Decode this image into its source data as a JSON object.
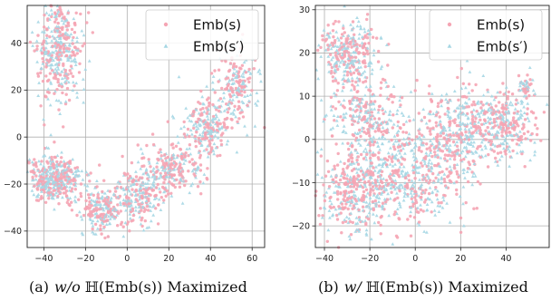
{
  "chart_data": [
    {
      "type": "scatter",
      "xlim": [
        -48,
        66
      ],
      "ylim": [
        -47,
        56
      ],
      "xticks": [
        -40,
        -20,
        0,
        20,
        40,
        60
      ],
      "yticks": [
        -40,
        -20,
        0,
        20,
        40
      ],
      "grid": true,
      "legend": "top-right",
      "series": [
        {
          "name": "Emb(s)",
          "color": "#f5a5b4",
          "marker": "circle"
        },
        {
          "name": "Emb(s′)",
          "color": "#a6d7e4",
          "marker": "triangle"
        }
      ],
      "clusters": [
        {
          "cx": -33,
          "cy": 38,
          "sx": 5,
          "sy": 11,
          "n": 380
        },
        {
          "cx": -35,
          "cy": -18,
          "sx": 7,
          "sy": 5,
          "n": 420
        },
        {
          "cx": -12,
          "cy": -31,
          "sx": 5,
          "sy": 5,
          "n": 200
        },
        {
          "cx": 5,
          "cy": -25,
          "sx": 6,
          "sy": 6,
          "n": 240
        },
        {
          "cx": 22,
          "cy": -13,
          "sx": 8,
          "sy": 5,
          "n": 240
        },
        {
          "cx": 38,
          "cy": 5,
          "sx": 6,
          "sy": 6,
          "n": 220
        },
        {
          "cx": 52,
          "cy": 22,
          "sx": 5,
          "sy": 8,
          "n": 200
        }
      ]
    },
    {
      "type": "scatter",
      "xlim": [
        -44,
        59
      ],
      "ylim": [
        -25,
        31
      ],
      "xticks": [
        -40,
        -20,
        0,
        20,
        40
      ],
      "yticks": [
        -20,
        -10,
        0,
        10,
        20,
        30
      ],
      "grid": true,
      "legend": "top-right",
      "series": [
        {
          "name": "Emb(s)",
          "color": "#f5a5b4",
          "marker": "circle"
        },
        {
          "name": "Emb(s′)",
          "color": "#a6d7e4",
          "marker": "triangle"
        }
      ],
      "clusters": [
        {
          "cx": -29,
          "cy": 20,
          "sx": 6,
          "sy": 4,
          "n": 320
        },
        {
          "cx": -22,
          "cy": 5,
          "sx": 8,
          "sy": 5,
          "n": 300
        },
        {
          "cx": -25,
          "cy": -12,
          "sx": 9,
          "sy": 5,
          "n": 420
        },
        {
          "cx": 0,
          "cy": -8,
          "sx": 10,
          "sy": 6,
          "n": 420
        },
        {
          "cx": 20,
          "cy": 2,
          "sx": 9,
          "sy": 5,
          "n": 360
        },
        {
          "cx": 40,
          "cy": 4,
          "sx": 8,
          "sy": 4,
          "n": 280
        },
        {
          "cx": 48,
          "cy": 12,
          "sx": 2,
          "sy": 1.5,
          "n": 40
        }
      ]
    }
  ],
  "captions": {
    "a": {
      "label": "(a)",
      "prefix": "w/o",
      "rest": "ℍ(Emb(s)) Maximized"
    },
    "b": {
      "label": "(b)",
      "prefix": "w/",
      "rest": "ℍ(Emb(s)) Maximized"
    }
  }
}
